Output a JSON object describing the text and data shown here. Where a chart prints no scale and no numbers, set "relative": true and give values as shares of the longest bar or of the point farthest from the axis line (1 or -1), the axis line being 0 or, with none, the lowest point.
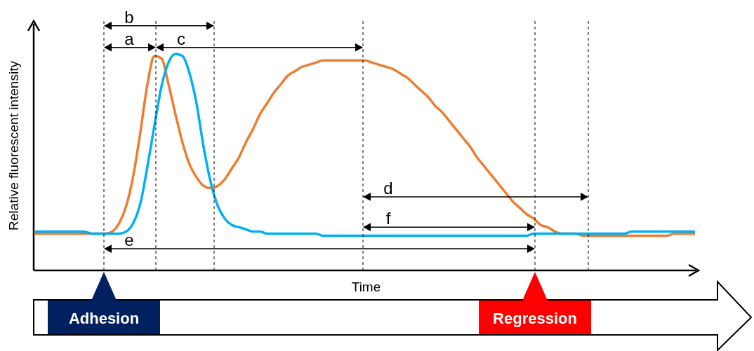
{
  "chart_data": {
    "type": "line",
    "relative": true,
    "xlabel": "Time",
    "ylabel": "Relative fluorescent intensity",
    "categories": [
      null,
      null,
      null,
      null,
      null,
      null,
      null,
      null,
      null,
      null,
      null,
      null,
      null,
      null,
      null,
      null,
      null,
      null,
      null,
      null,
      null,
      null,
      null,
      null,
      null,
      null,
      null,
      null,
      null,
      null,
      null,
      null,
      null,
      null,
      null,
      null,
      null,
      null,
      null,
      null,
      null,
      null,
      null,
      null,
      null,
      null,
      null,
      null,
      null,
      null,
      null,
      null,
      null,
      null,
      null,
      null,
      null,
      null,
      null,
      null,
      null,
      null,
      null,
      null,
      null,
      null,
      null,
      null,
      null,
      null,
      null,
      null,
      null,
      null,
      null,
      null,
      null,
      null,
      null,
      null,
      null,
      null,
      null,
      null,
      null,
      null,
      null,
      null,
      null,
      null,
      null,
      null,
      null,
      null,
      null
    ],
    "series": [
      {
        "color": "#ed7d31",
        "values": [
          0.17,
          0.17,
          0.17,
          0.17,
          0.17,
          0.17,
          0.17,
          0.17,
          0.17,
          0.17,
          0.17,
          0.18,
          0.22,
          0.3,
          0.44,
          0.64,
          0.86,
          0.99,
          0.98,
          0.86,
          0.72,
          0.59,
          0.49,
          0.43,
          0.39,
          0.38,
          0.39,
          0.42,
          0.47,
          0.52,
          0.59,
          0.65,
          0.72,
          0.77,
          0.82,
          0.86,
          0.9,
          0.92,
          0.94,
          0.95,
          0.96,
          0.97,
          0.97,
          0.97,
          0.97,
          0.97,
          0.97,
          0.97,
          0.96,
          0.95,
          0.94,
          0.93,
          0.91,
          0.89,
          0.86,
          0.83,
          0.8,
          0.76,
          0.73,
          0.69,
          0.65,
          0.61,
          0.57,
          0.52,
          0.48,
          0.44,
          0.4,
          0.36,
          0.32,
          0.29,
          0.26,
          0.24,
          0.21,
          0.2,
          0.18,
          0.17,
          0.17,
          0.17,
          0.16,
          0.16,
          0.16,
          0.16,
          0.16,
          0.16,
          0.16,
          0.16,
          0.16,
          0.16,
          0.16,
          0.16,
          0.16,
          0.17,
          0.17,
          0.17,
          0.17
        ]
      },
      {
        "color": "#00b0f0",
        "values": [
          0.18,
          0.18,
          0.18,
          0.18,
          0.18,
          0.18,
          0.18,
          0.18,
          0.17,
          0.17,
          0.17,
          0.17,
          0.17,
          0.18,
          0.22,
          0.31,
          0.48,
          0.67,
          0.85,
          0.96,
          1.0,
          0.99,
          0.91,
          0.77,
          0.57,
          0.41,
          0.3,
          0.24,
          0.21,
          0.2,
          0.19,
          0.18,
          0.18,
          0.17,
          0.17,
          0.17,
          0.17,
          0.17,
          0.17,
          0.17,
          0.17,
          0.16,
          0.16,
          0.16,
          0.16,
          0.16,
          0.16,
          0.16,
          0.16,
          0.16,
          0.16,
          0.16,
          0.16,
          0.16,
          0.16,
          0.16,
          0.16,
          0.16,
          0.16,
          0.16,
          0.16,
          0.16,
          0.16,
          0.16,
          0.16,
          0.16,
          0.16,
          0.16,
          0.16,
          0.16,
          0.16,
          0.17,
          0.17,
          0.17,
          0.17,
          0.17,
          0.17,
          0.17,
          0.17,
          0.17,
          0.17,
          0.17,
          0.17,
          0.17,
          0.17,
          0.18,
          0.18,
          0.18,
          0.18,
          0.18,
          0.18,
          0.18,
          0.18,
          0.18,
          0.18
        ]
      }
    ],
    "annotations": [
      "a",
      "b",
      "c",
      "d",
      "e",
      "f",
      "Adhesion",
      "Regression"
    ]
  }
}
